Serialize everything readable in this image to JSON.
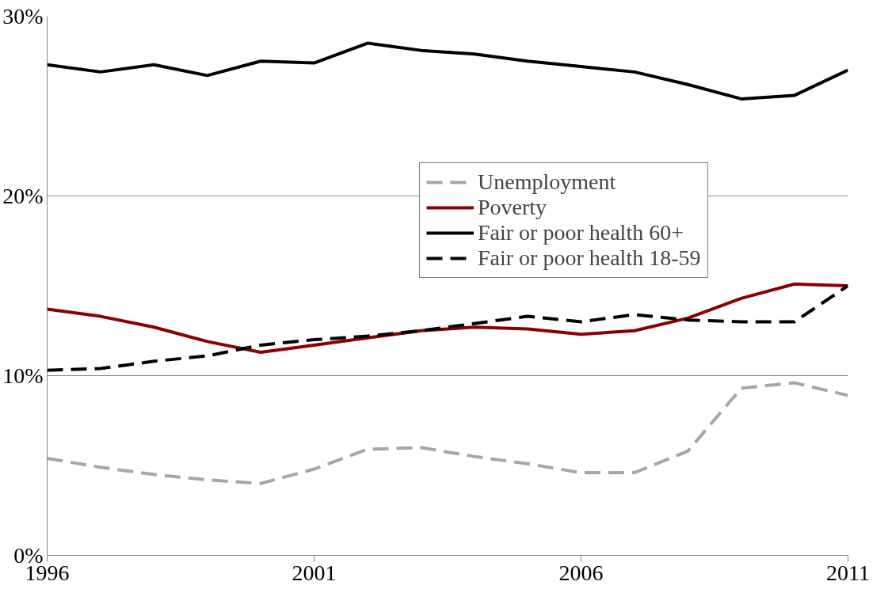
{
  "chart_data": {
    "type": "line",
    "x": [
      1996,
      1997,
      1998,
      1999,
      2000,
      2001,
      2002,
      2003,
      2004,
      2005,
      2006,
      2007,
      2008,
      2009,
      2010,
      2011
    ],
    "series": [
      {
        "name": "Unemployment",
        "color": "#a6a6a6",
        "line_style": "dashed",
        "values": [
          5.4,
          4.9,
          4.5,
          4.2,
          4.0,
          4.8,
          5.9,
          6.0,
          5.5,
          5.1,
          4.6,
          4.6,
          5.8,
          9.3,
          9.6,
          8.9
        ]
      },
      {
        "name": "Poverty",
        "color": "#8b0000",
        "line_style": "solid",
        "values": [
          13.7,
          13.3,
          12.7,
          11.9,
          11.3,
          11.7,
          12.1,
          12.5,
          12.7,
          12.6,
          12.3,
          12.5,
          13.2,
          14.3,
          15.1,
          15.0
        ]
      },
      {
        "name": "Fair or poor health 60+",
        "color": "#000000",
        "line_style": "solid",
        "values": [
          27.3,
          26.9,
          27.3,
          26.7,
          27.5,
          27.4,
          28.5,
          28.1,
          27.9,
          27.5,
          27.2,
          26.9,
          26.2,
          25.4,
          25.6,
          27.0
        ]
      },
      {
        "name": "Fair or poor health 18-59",
        "color": "#000000",
        "line_style": "dashed",
        "values": [
          10.3,
          10.4,
          10.8,
          11.1,
          11.7,
          12.0,
          12.2,
          12.5,
          12.9,
          13.3,
          13.0,
          13.4,
          13.1,
          13.0,
          13.0,
          15.0
        ]
      }
    ],
    "xlim": [
      1996,
      2011
    ],
    "xticks": [
      1996,
      2001,
      2006,
      2011
    ],
    "ylim": [
      0,
      30
    ],
    "yticks": [
      {
        "value": 0,
        "label": "0%"
      },
      {
        "value": 10,
        "label": "10%"
      },
      {
        "value": 20,
        "label": "20%"
      },
      {
        "value": 30,
        "label": "30%"
      }
    ],
    "grid": "y",
    "legend": "right",
    "marker": "none"
  }
}
